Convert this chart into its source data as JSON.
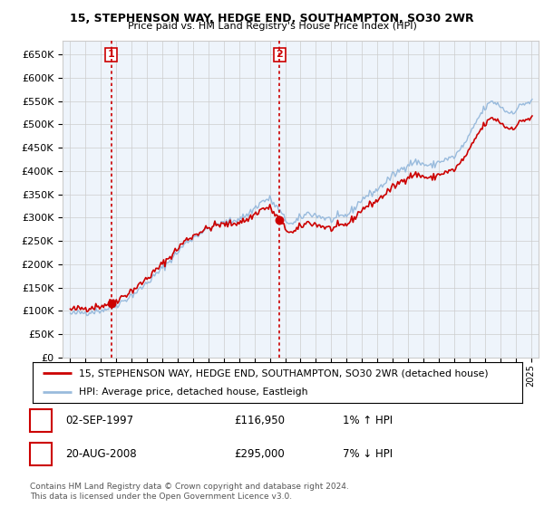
{
  "title1": "15, STEPHENSON WAY, HEDGE END, SOUTHAMPTON, SO30 2WR",
  "title2": "Price paid vs. HM Land Registry's House Price Index (HPI)",
  "legend_line1": "15, STEPHENSON WAY, HEDGE END, SOUTHAMPTON, SO30 2WR (detached house)",
  "legend_line2": "HPI: Average price, detached house, Eastleigh",
  "annotation1_date": "02-SEP-1997",
  "annotation1_price": "£116,950",
  "annotation1_hpi": "1% ↑ HPI",
  "annotation2_date": "20-AUG-2008",
  "annotation2_price": "£295,000",
  "annotation2_hpi": "7% ↓ HPI",
  "footnote": "Contains HM Land Registry data © Crown copyright and database right 2024.\nThis data is licensed under the Open Government Licence v3.0.",
  "sale1_x": 1997.67,
  "sale1_y": 116950,
  "sale2_x": 2008.63,
  "sale2_y": 295000,
  "ylim": [
    0,
    680000
  ],
  "xlim_start": 1994.5,
  "xlim_end": 2025.5,
  "red_color": "#cc0000",
  "blue_color": "#99bbdd",
  "fill_color": "#ddeeff",
  "grid_color": "#cccccc",
  "background_color": "#ffffff",
  "plot_bg_color": "#eef4fb"
}
